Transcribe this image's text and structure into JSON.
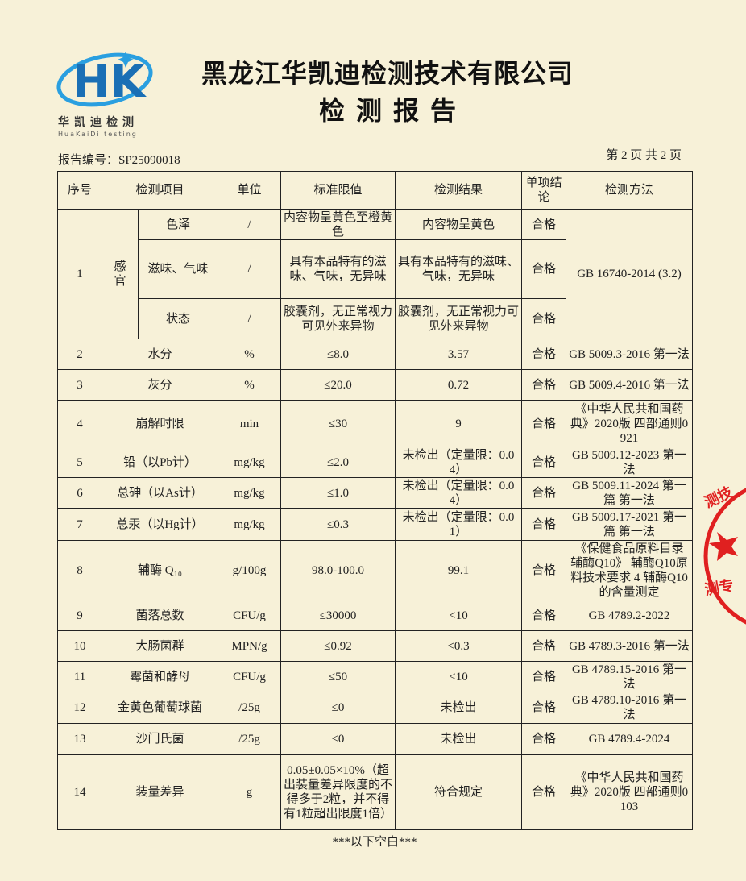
{
  "logo": {
    "letters": "HK",
    "cn": "华凯迪检测",
    "en": "HuaKaiDi testing",
    "colors": {
      "primary": "#1a6fb5",
      "accent": "#2a9fe0"
    }
  },
  "header": {
    "company": "黑龙江华凯迪检测技术有限公司",
    "title": "检测报告",
    "report_no": "报告编号：SP25090018",
    "page": "第 2 页 共 2 页"
  },
  "table": {
    "headers": [
      "序号",
      "检测项目",
      "单位",
      "标准限值",
      "检测结果",
      "单项结论",
      "检测方法"
    ],
    "sensory": {
      "no": "1",
      "group": "感官",
      "method": "GB 16740-2014 (3.2)",
      "items": [
        [
          "色泽",
          "/",
          "内容物呈黄色至橙黄色",
          "内容物呈黄色",
          "合格"
        ],
        [
          "滋味、气味",
          "/",
          "具有本品特有的滋味、气味，无异味",
          "具有本品特有的滋味、气味，无异味",
          "合格"
        ],
        [
          "状态",
          "/",
          "胶囊剂，无正常视力可见外来异物",
          "胶囊剂，无正常视力可见外来异物",
          "合格"
        ]
      ]
    },
    "rows": [
      [
        "2",
        "水分",
        "%",
        "≤8.0",
        "3.57",
        "合格",
        "GB 5009.3-2016 第一法"
      ],
      [
        "3",
        "灰分",
        "%",
        "≤20.0",
        "0.72",
        "合格",
        "GB 5009.4-2016 第一法"
      ],
      [
        "4",
        "崩解时限",
        "min",
        "≤30",
        "9",
        "合格",
        "《中华人民共和国药典》2020版 四部通则0921"
      ],
      [
        "5",
        "铅（以Pb计）",
        "mg/kg",
        "≤2.0",
        "未检出（定量限：0.04）",
        "合格",
        "GB 5009.12-2023 第一法"
      ],
      [
        "6",
        "总砷（以As计）",
        "mg/kg",
        "≤1.0",
        "未检出（定量限：0.04）",
        "合格",
        "GB 5009.11-2024 第一篇 第一法"
      ],
      [
        "7",
        "总汞（以Hg计）",
        "mg/kg",
        "≤0.3",
        "未检出（定量限：0.01）",
        "合格",
        "GB 5009.17-2021 第一篇 第一法"
      ],
      [
        "8",
        "辅酶 Q₁₀",
        "g/100g",
        "98.0-100.0",
        "99.1",
        "合格",
        "《保健食品原料目录 辅酶Q10》 辅酶Q10原料技术要求 4 辅酶Q10 的含量测定"
      ],
      [
        "9",
        "菌落总数",
        "CFU/g",
        "≤30000",
        "<10",
        "合格",
        "GB 4789.2-2022"
      ],
      [
        "10",
        "大肠菌群",
        "MPN/g",
        "≤0.92",
        "<0.3",
        "合格",
        "GB 4789.3-2016 第一法"
      ],
      [
        "11",
        "霉菌和酵母",
        "CFU/g",
        "≤50",
        "<10",
        "合格",
        "GB 4789.15-2016 第一法"
      ],
      [
        "12",
        "金黄色葡萄球菌",
        "/25g",
        "≤0",
        "未检出",
        "合格",
        "GB 4789.10-2016 第一法"
      ],
      [
        "13",
        "沙门氏菌",
        "/25g",
        "≤0",
        "未检出",
        "合格",
        "GB 4789.4-2024"
      ],
      [
        "14",
        "装量差异",
        "g",
        "0.05±0.05×10%（超出装量差异限度的不得多于2粒，并不得有1粒超出限度1倍）",
        "符合规定",
        "合格",
        "《中华人民共和国药典》2020版 四部通则0103"
      ]
    ]
  },
  "footer": "***以下空白***",
  "stamp": {
    "text": "测技术 测专用",
    "color": "#e02020"
  }
}
